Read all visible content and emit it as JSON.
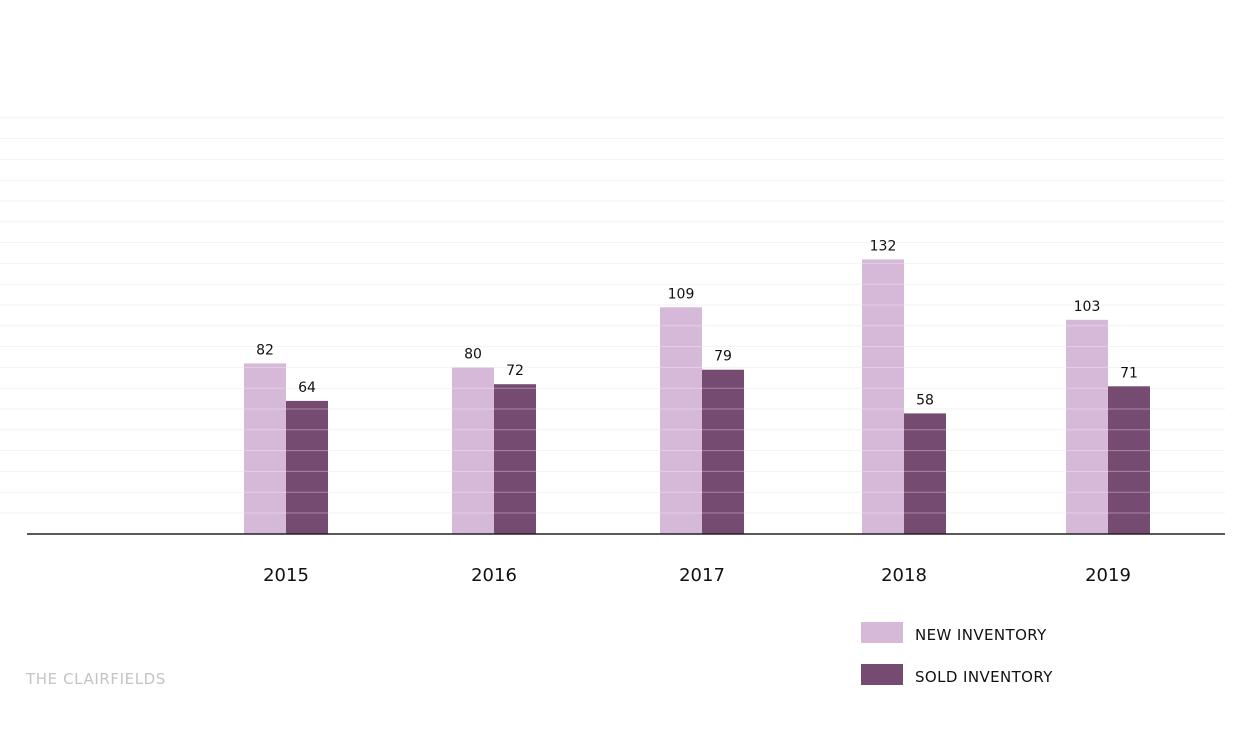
{
  "chart_data": {
    "type": "bar",
    "categories": [
      "2015",
      "2016",
      "2017",
      "2018",
      "2019"
    ],
    "series": [
      {
        "name": "NEW INVENTORY",
        "values": [
          82,
          80,
          109,
          132,
          103
        ],
        "color": "#d6b8d8"
      },
      {
        "name": "SOLD INVENTORY",
        "values": [
          64,
          72,
          79,
          58,
          71
        ],
        "color": "#764b71"
      }
    ],
    "title": "",
    "xlabel": "",
    "ylabel": "",
    "ylim": [
      0,
      200
    ],
    "grid": true,
    "legend": "bottom-right",
    "data_labels": true
  },
  "footer": {
    "brand": "THE CLAIRFIELDS"
  },
  "colors": {
    "axis": "#222222",
    "grid": "#f2f2f2",
    "bar_stripe": "#ffffff"
  }
}
